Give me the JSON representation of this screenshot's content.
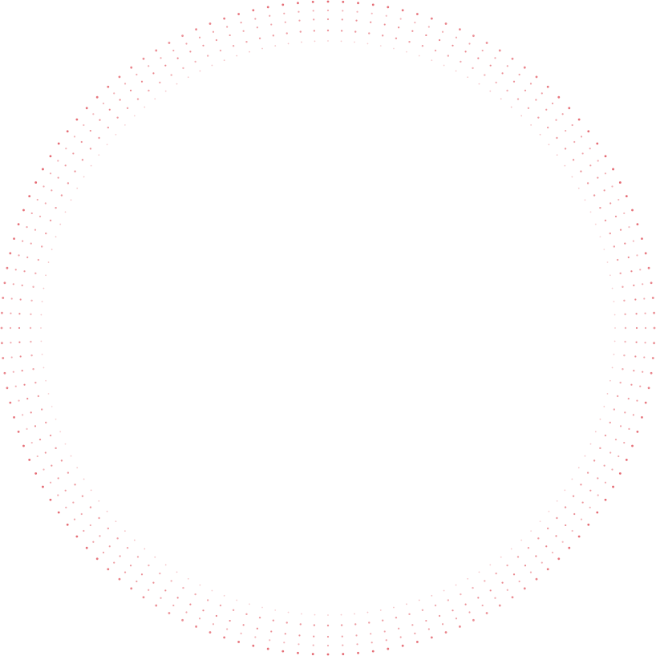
{
  "decoration": {
    "type": "dotted-ring",
    "icon": "dotted-circle-icon",
    "dot_color": "#e0505a",
    "ring_count": 5,
    "dots_per_ring": 136
  }
}
